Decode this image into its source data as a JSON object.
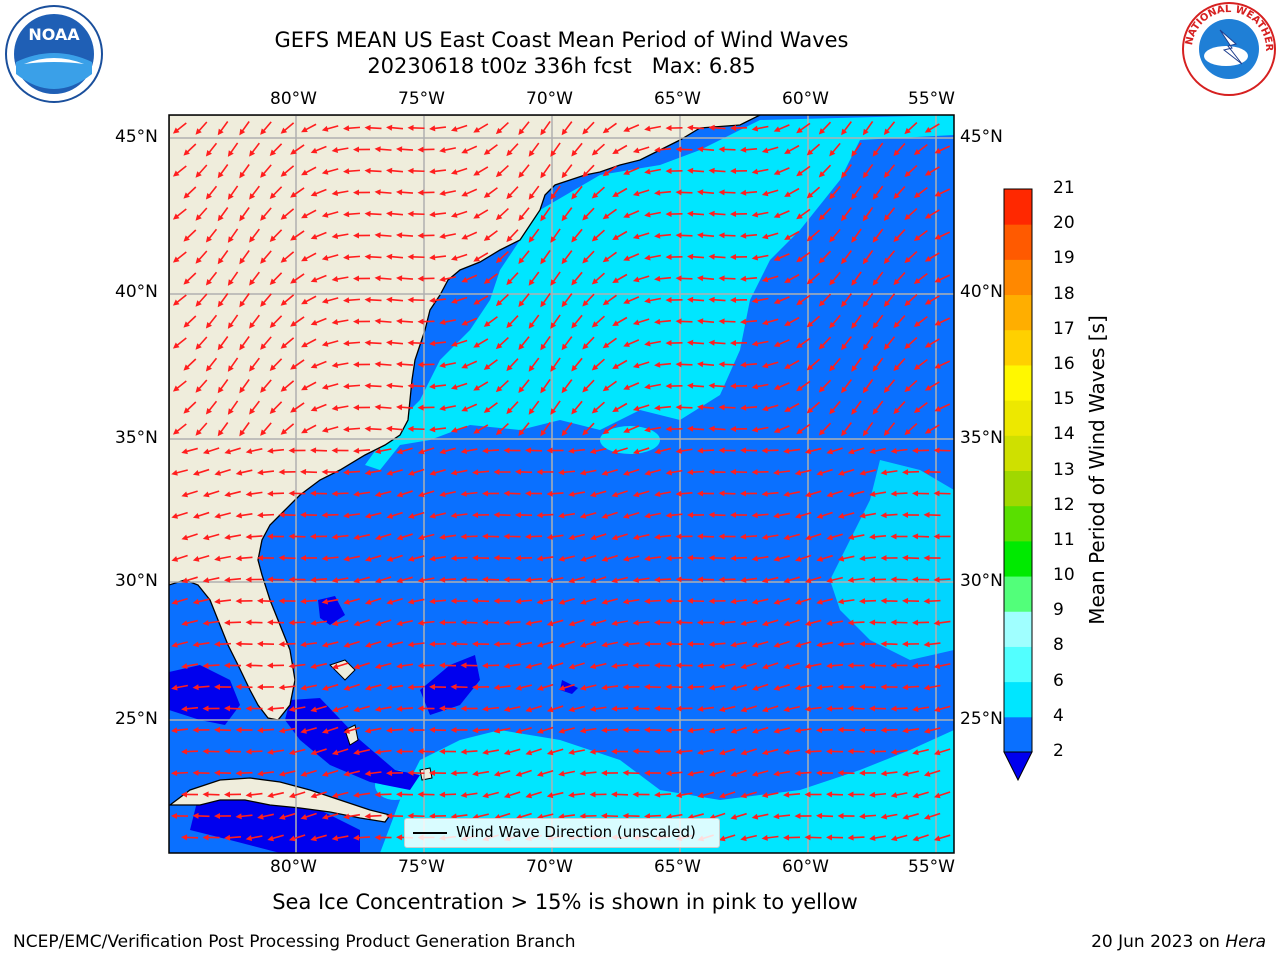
{
  "header": {
    "title_line1": "GEFS MEAN US East Coast Mean Period of Wind Waves",
    "title_line2": "20230618 t00z 336h fcst   Max: 6.85",
    "noaa_logo_text": "NOAA",
    "nws_logo_text": "NATIONAL WEATHER SERVICE"
  },
  "map": {
    "lon_labels": [
      "80°W",
      "75°W",
      "70°W",
      "65°W",
      "60°W",
      "55°W"
    ],
    "lat_labels": [
      "45°N",
      "40°N",
      "35°N",
      "30°N",
      "25°N"
    ],
    "lon_range": [
      -85,
      -54.6
    ],
    "lat_range": [
      20.4,
      45.8
    ],
    "gridlines": true,
    "land_color": "#efeddc",
    "arrow_color": "#ff1e1e",
    "legend_label": "Wind Wave Direction (unscaled)"
  },
  "colorbar": {
    "label": "Mean Period of Wind Waves [s]",
    "ticks": [
      "2",
      "4",
      "6",
      "8",
      "9",
      "10",
      "11",
      "12",
      "13",
      "14",
      "15",
      "16",
      "17",
      "18",
      "19",
      "20",
      "21"
    ],
    "colors": [
      "#0a70ff",
      "#00e6ff",
      "#52ffff",
      "#a0ffff",
      "#52ff7a",
      "#00ea00",
      "#59df00",
      "#a0d800",
      "#cfe000",
      "#ede800",
      "#fff800",
      "#ffd000",
      "#ffae00",
      "#ff8800",
      "#ff5a00",
      "#ff2800"
    ],
    "underflow_color": "#0000ee"
  },
  "subtitle": "Sea Ice Concentration > 15% is shown in pink to yellow",
  "footer": {
    "left": "NCEP/EMC/Verification Post Processing Product Generation Branch",
    "date": "20 Jun 2023 on ",
    "machine": "Hera"
  }
}
